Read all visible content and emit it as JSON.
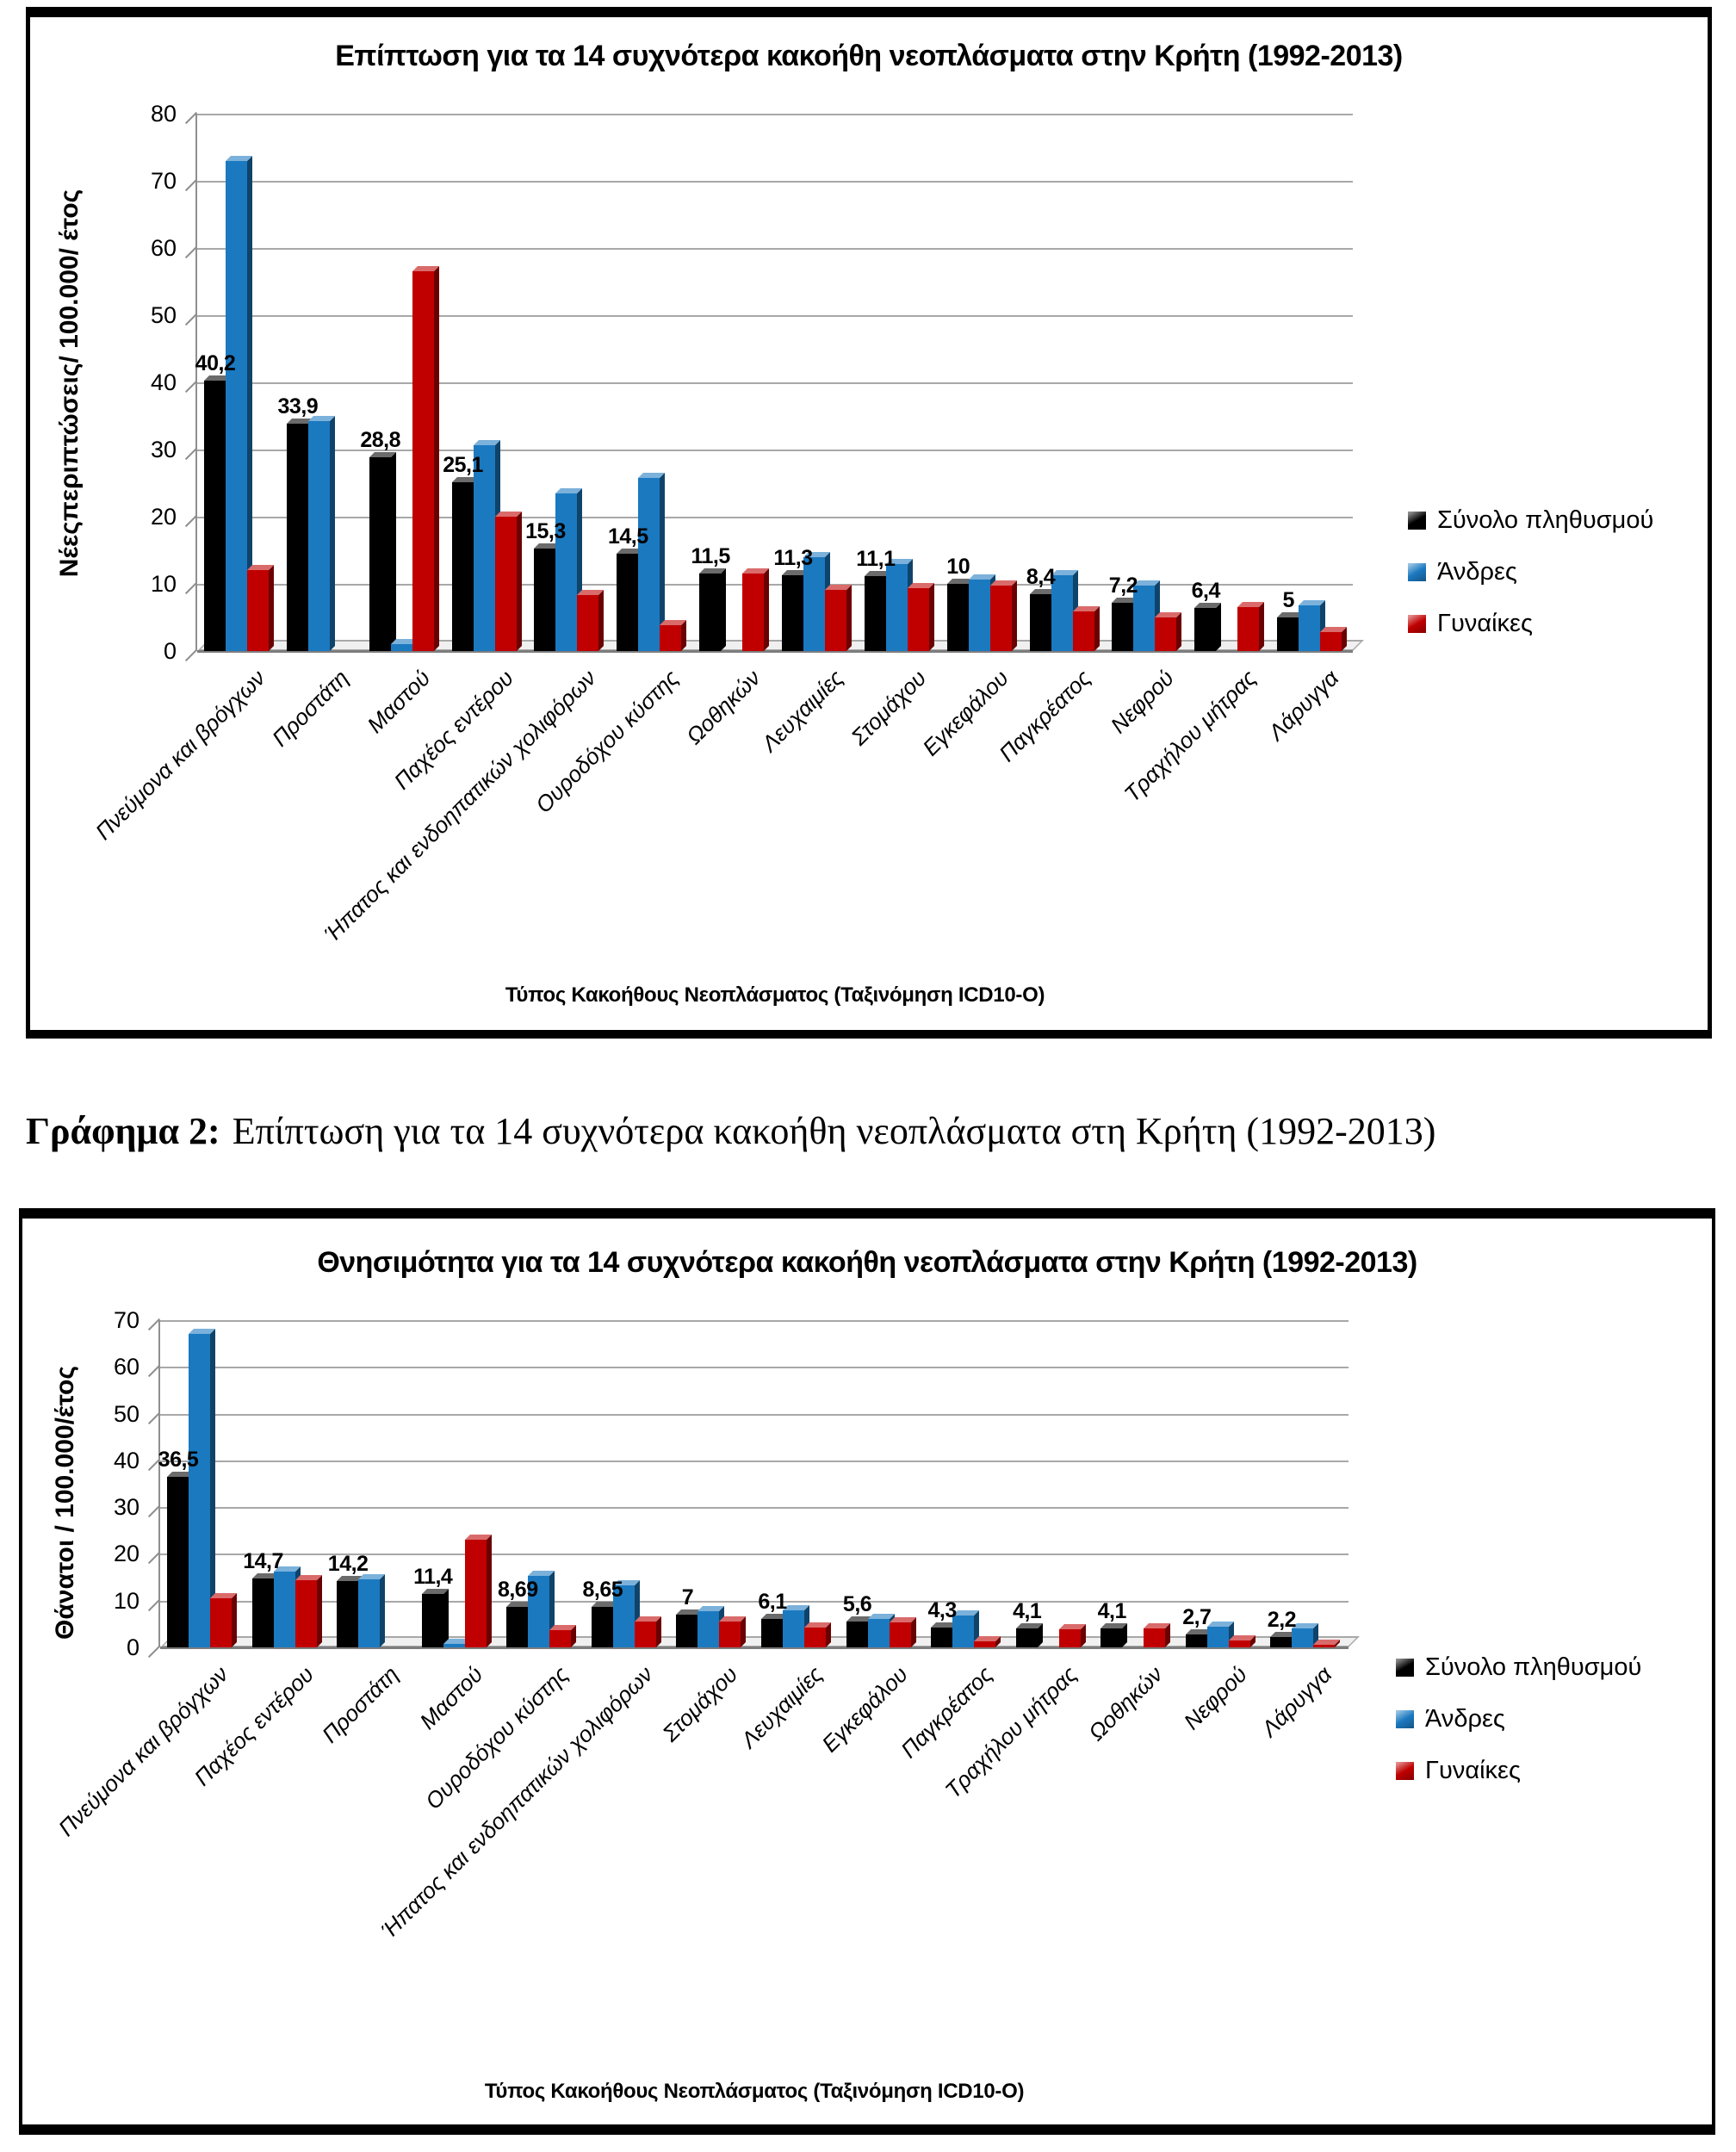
{
  "caption": {
    "label": "Γράφημα 2:",
    "text": "Επίπτωση για τα 14 συχνότερα κακοήθη νεοπλάσματα στη Κρήτη (1992-2013)"
  },
  "colors": {
    "total": "#000000",
    "men": "#1B79C0",
    "women": "#C00000",
    "gridline": "#a8a8a8"
  },
  "chart_data": [
    {
      "type": "bar",
      "title": "Επίπτωση για τα 14 συχνότερα κακοήθη νεοπλάσματα στην Κρήτη (1992-2013)",
      "ylabel": "Νέεςπεριπτώσεις/ 100.000/ έτος",
      "xlabel": "Τύπος Κακοήθους Νεοπλάσματος (Ταξινόμηση ICD10-O)",
      "ylim": [
        0,
        80
      ],
      "yticks": [
        0,
        10,
        20,
        30,
        40,
        50,
        60,
        70,
        80
      ],
      "grid": true,
      "legend_position": "right",
      "categories": [
        "Πνεύμονα και βρόγχων",
        "Προστάτη",
        "Μαστού",
        "Παχέος εντέρου",
        "Ήπατος και ενδοηπατικών χολιφόρων",
        "Ουροδόχου κύστης",
        "Ωοθηκών",
        "Λευχαιμίες",
        "Στομάχου",
        "Εγκεφάλου",
        "Παγκρέατος",
        "Νεφρού",
        "Τραχήλου μήτρας",
        "Λάρυγγα"
      ],
      "series": [
        {
          "name": "Σύνολο πληθυσμού",
          "color": "#000000",
          "values": [
            40.2,
            33.9,
            28.8,
            25.1,
            15.3,
            14.5,
            11.5,
            11.3,
            11.1,
            10,
            8.4,
            7.2,
            6.4,
            5
          ],
          "data_labels": [
            "40,2",
            "33,9",
            "28,8",
            "25,1",
            "15,3",
            "14,5",
            "11,5",
            "11,3",
            "11,1",
            "10",
            "8,4",
            "7,2",
            "6,4",
            "5"
          ]
        },
        {
          "name": "Άνδρες",
          "color": "#1B79C0",
          "values": [
            73,
            34.2,
            1,
            30.6,
            23.5,
            25.8,
            0,
            14,
            13,
            10.6,
            11.3,
            9.7,
            0,
            6.8
          ]
        },
        {
          "name": "Γυναίκες",
          "color": "#C00000",
          "values": [
            12,
            0,
            56.5,
            20,
            8.3,
            3.9,
            11.6,
            9.1,
            9.3,
            9.8,
            5.9,
            5,
            6.5,
            2.8
          ]
        }
      ]
    },
    {
      "type": "bar",
      "title": "Θνησιμότητα για τα 14 συχνότερα κακοήθη νεοπλάσματα στην Κρήτη (1992-2013)",
      "ylabel": "Θάνατοι / 100.000/έτος",
      "xlabel": "Τύπος Κακοήθους Νεοπλάσματος (Ταξινόμηση ICD10-O)",
      "ylim": [
        0,
        70
      ],
      "yticks": [
        0,
        10,
        20,
        30,
        40,
        50,
        60,
        70
      ],
      "grid": true,
      "legend_position": "right",
      "categories": [
        "Πνεύμονα και βρόγχων",
        "Παχέος εντέρου",
        "Προστάτη",
        "Μαστού",
        "Ουροδόχου κύστης",
        "Ήπατος και ενδοηπατικών χολιφόρων",
        "Στομάχου",
        "Λευχαιμίες",
        "Εγκεφάλου",
        "Παγκρέατος",
        "Τραχήλου μήτρας",
        "Ωοθηκών",
        "Νεφρού",
        "Λάρυγγα"
      ],
      "series": [
        {
          "name": "Σύνολο πληθυσμού",
          "color": "#000000",
          "values": [
            36.5,
            14.7,
            14.2,
            11.4,
            8.69,
            8.65,
            7,
            6.1,
            5.6,
            4.3,
            4.1,
            4.1,
            2.7,
            2.2
          ],
          "data_labels": [
            "36,5",
            "14,7",
            "14,2",
            "11,4",
            "8,69",
            "8,65",
            "7",
            "6,1",
            "5,6",
            "4,3",
            "4,1",
            "4,1",
            "2,7",
            "2,2"
          ]
        },
        {
          "name": "Άνδρες",
          "color": "#1B79C0",
          "values": [
            67,
            16.3,
            14.5,
            0.7,
            15.3,
            13.3,
            7.8,
            8,
            6,
            6.9,
            0,
            0,
            4.4,
            4
          ]
        },
        {
          "name": "Γυναίκες",
          "color": "#C00000",
          "values": [
            10.5,
            14.3,
            0,
            23,
            3.7,
            5.5,
            5.6,
            4.3,
            5.4,
            1.3,
            3.9,
            4,
            1.4,
            0.5
          ]
        }
      ]
    }
  ]
}
